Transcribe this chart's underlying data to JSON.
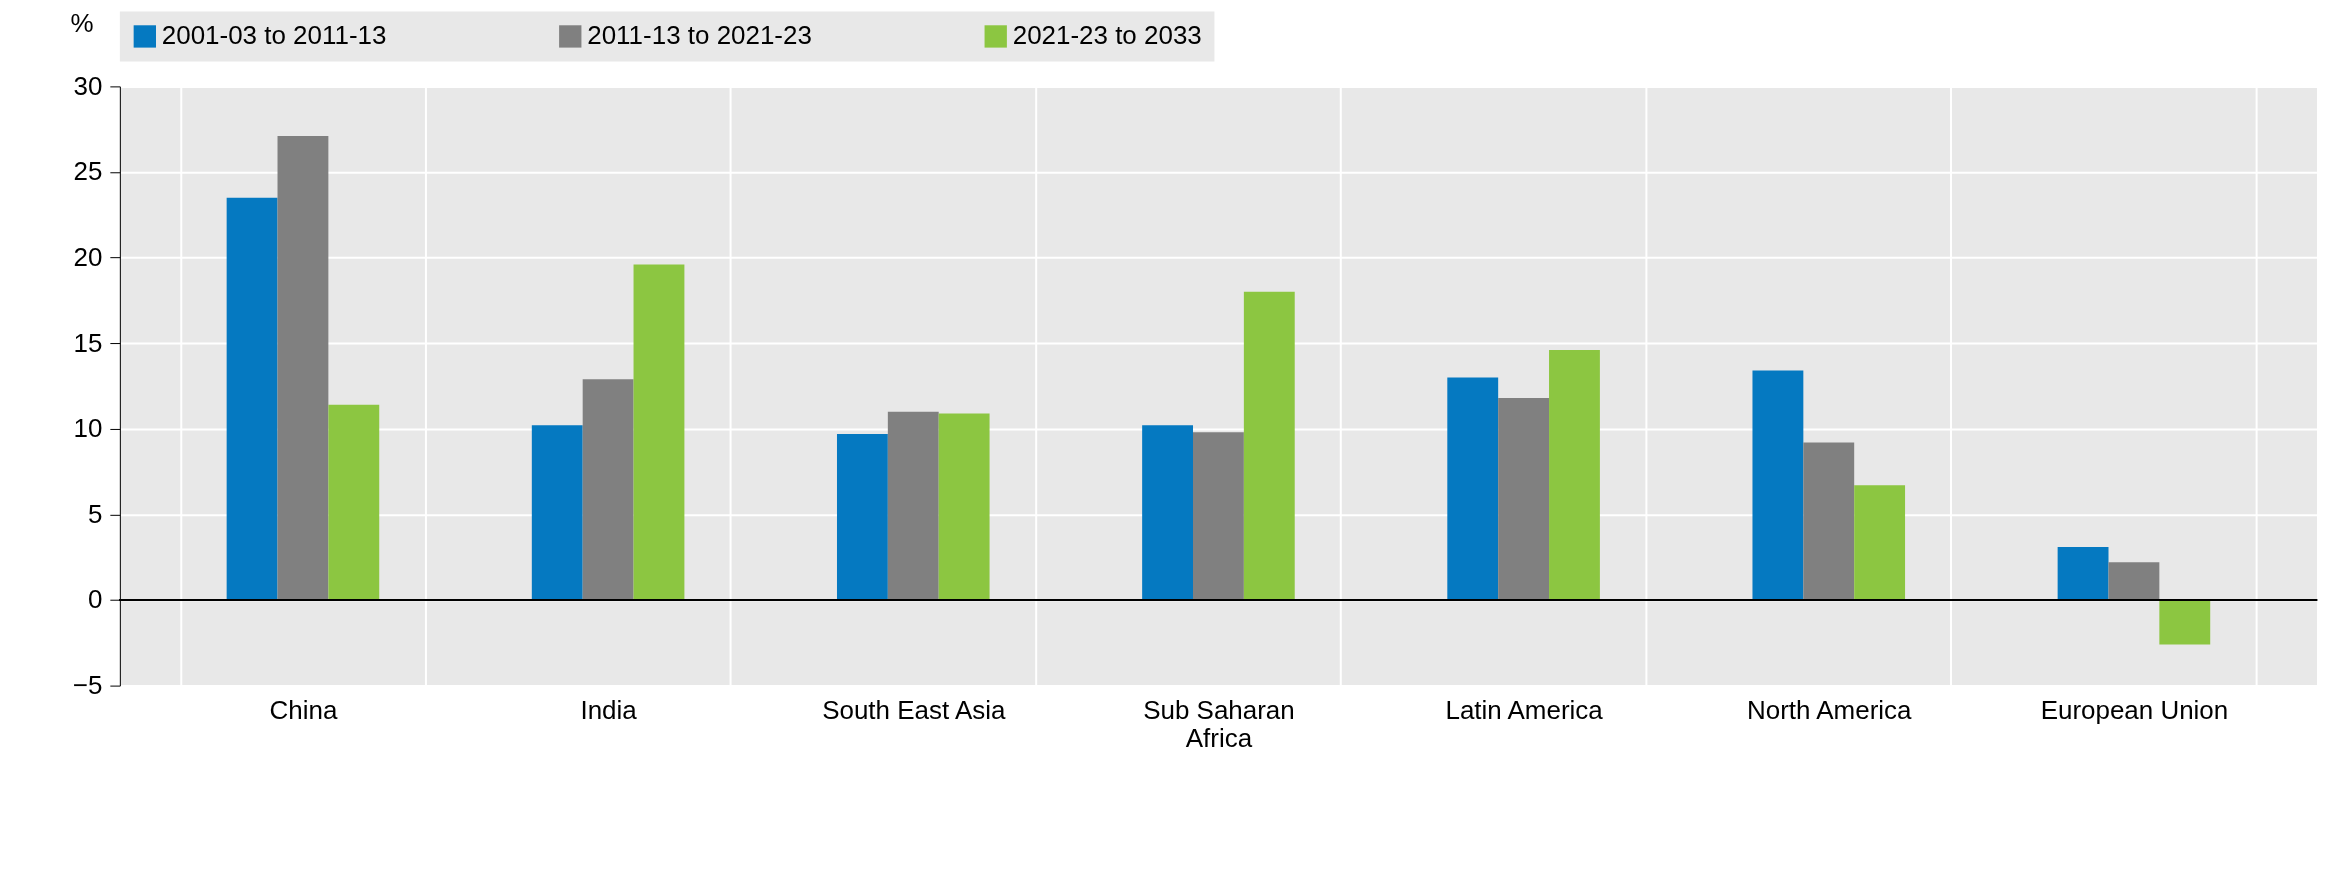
{
  "chart_data": {
    "type": "bar",
    "ylabel": "%",
    "categories": [
      "China",
      "India",
      "South East Asia",
      "Sub Saharan Africa",
      "Latin America",
      "North America",
      "European Union"
    ],
    "series": [
      {
        "name": "2001-03 to 2011-13",
        "color": "#0579c1",
        "values": [
          23.5,
          10.2,
          9.7,
          10.2,
          13.0,
          13.4,
          3.1
        ]
      },
      {
        "name": "2011-13 to 2021-23",
        "color": "#808080",
        "values": [
          27.1,
          12.9,
          11.0,
          9.8,
          11.8,
          9.2,
          2.2
        ]
      },
      {
        "name": "2021-23 to 2033",
        "color": "#8cc641",
        "values": [
          11.4,
          19.6,
          10.9,
          18.0,
          14.6,
          6.7,
          -2.6
        ]
      }
    ],
    "ylim": [
      -5,
      30
    ],
    "yticks": [
      -5,
      0,
      5,
      10,
      15,
      20,
      25,
      30
    ],
    "grid": true,
    "legend": "top"
  }
}
